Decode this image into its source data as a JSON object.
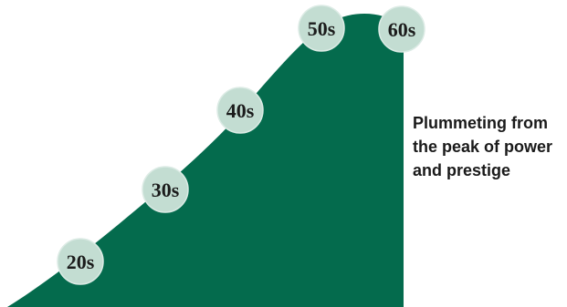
{
  "colors": {
    "hill_fill": "#046b4d",
    "circle_fill": "#c3ddd2",
    "circle_stroke": "#dcebe5",
    "label_color": "#1b1b1b",
    "caption_color": "#1a1a1a"
  },
  "stages": [
    {
      "label": "20s"
    },
    {
      "label": "30s"
    },
    {
      "label": "40s"
    },
    {
      "label": "50s"
    },
    {
      "label": "60s"
    }
  ],
  "caption": {
    "line1": "Plummeting from",
    "line2": "the peak of power",
    "line3": "and prestige"
  }
}
